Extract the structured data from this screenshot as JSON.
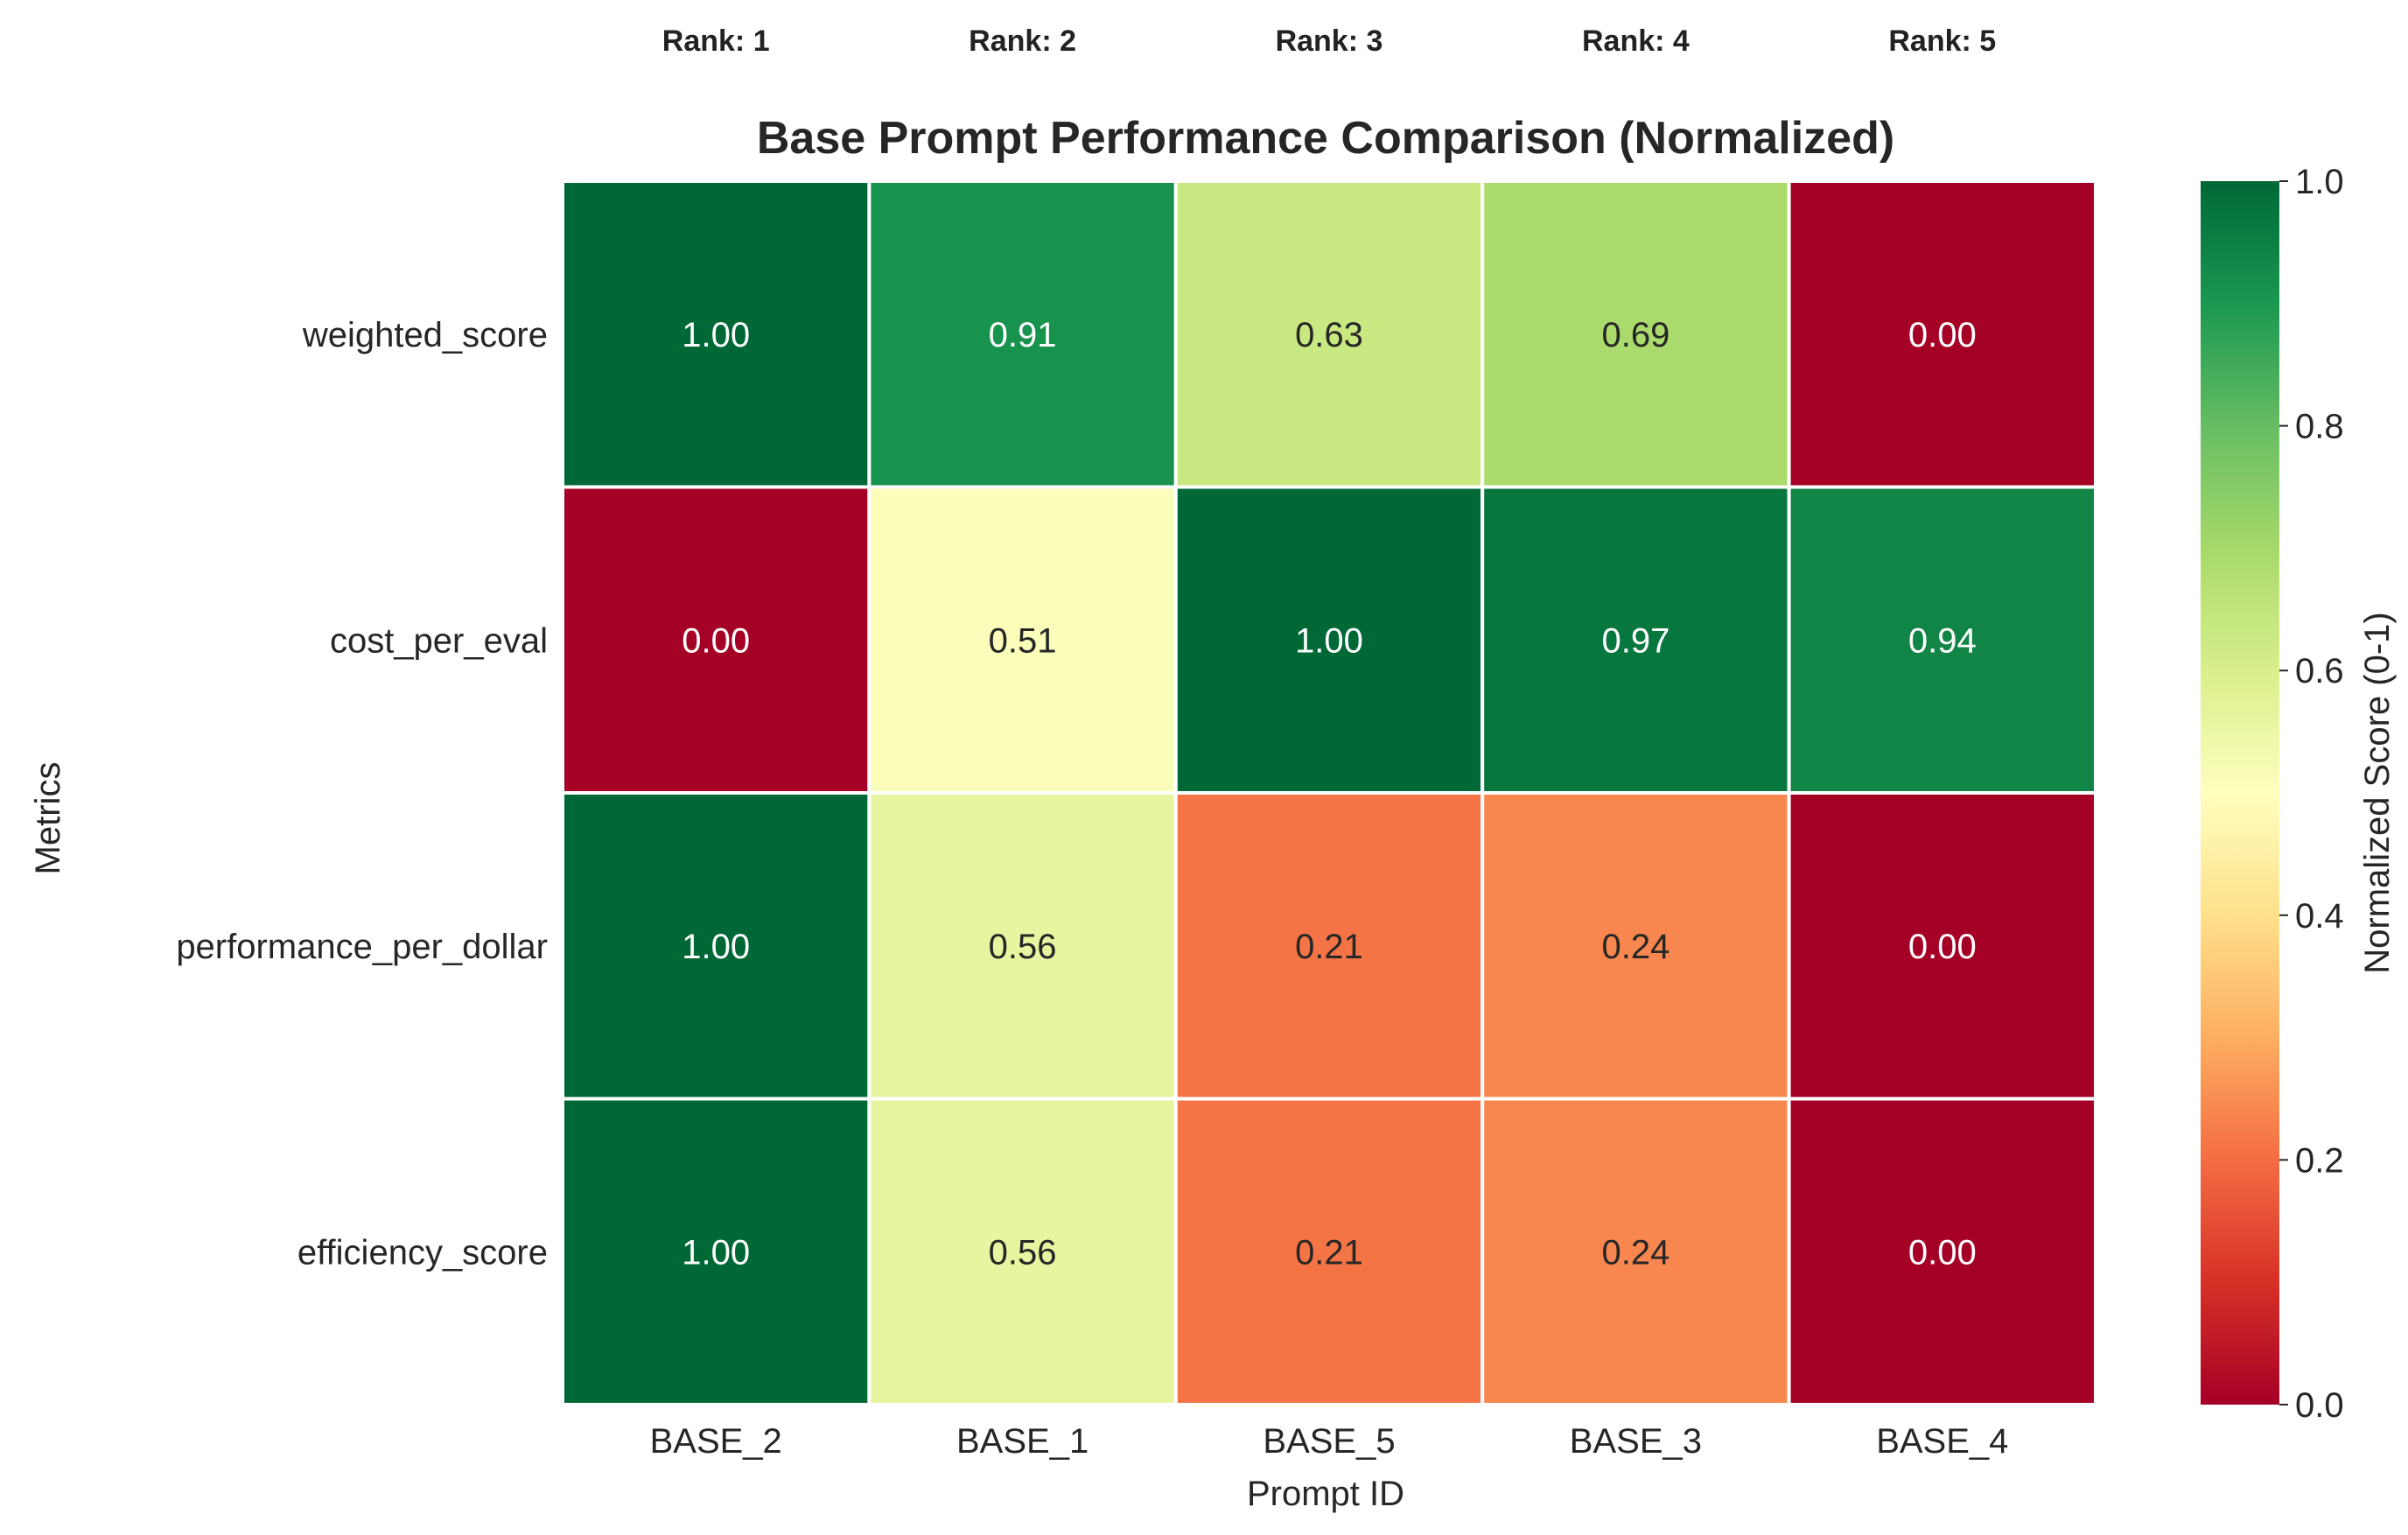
{
  "chart_data": {
    "type": "heatmap",
    "title": "Base Prompt Performance Comparison (Normalized)",
    "xlabel": "Prompt ID",
    "ylabel": "Metrics",
    "x_categories": [
      "BASE_2",
      "BASE_1",
      "BASE_5",
      "BASE_3",
      "BASE_4"
    ],
    "y_categories": [
      "weighted_score",
      "cost_per_eval",
      "performance_per_dollar",
      "efficiency_score"
    ],
    "values": [
      [
        1.0,
        0.91,
        0.63,
        0.69,
        0.0
      ],
      [
        0.0,
        0.51,
        1.0,
        0.97,
        0.94
      ],
      [
        1.0,
        0.56,
        0.21,
        0.24,
        0.0
      ],
      [
        1.0,
        0.56,
        0.21,
        0.24,
        0.0
      ]
    ],
    "cell_labels": [
      [
        "1.00",
        "0.91",
        "0.63",
        "0.69",
        "0.00"
      ],
      [
        "0.00",
        "0.51",
        "1.00",
        "0.97",
        "0.94"
      ],
      [
        "1.00",
        "0.56",
        "0.21",
        "0.24",
        "0.00"
      ],
      [
        "1.00",
        "0.56",
        "0.21",
        "0.24",
        "0.00"
      ]
    ],
    "rank_labels": [
      "Rank: 1",
      "Rank: 2",
      "Rank: 3",
      "Rank: 4",
      "Rank: 5"
    ],
    "colorbar": {
      "label": "Normalized Score (0-1)",
      "range": [
        0.0,
        1.0
      ],
      "ticks": [
        "0.0",
        "0.2",
        "0.4",
        "0.6",
        "0.8",
        "1.0"
      ],
      "colormap": "RdYlGn"
    },
    "grid": false
  }
}
